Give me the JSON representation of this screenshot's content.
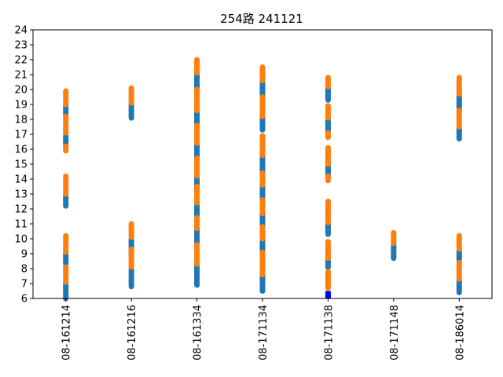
{
  "chart_data": {
    "type": "scatter",
    "title": "254路  241121",
    "xlabel": "",
    "ylabel": "",
    "ylim": [
      6,
      24
    ],
    "yticks": [
      6,
      7,
      8,
      9,
      10,
      11,
      12,
      13,
      14,
      15,
      16,
      17,
      18,
      19,
      20,
      21,
      22,
      23,
      24
    ],
    "categories": [
      "08-161214",
      "08-161216",
      "08-161334",
      "08-171134",
      "08-171138",
      "08-171148",
      "08-186014"
    ],
    "grid": false,
    "legend": "none",
    "series": [
      {
        "color": "#1f77b4",
        "segments": [
          [
            0,
            6.0,
            7.0
          ],
          [
            0,
            8.3,
            9.0
          ],
          [
            0,
            12.2,
            12.9
          ],
          [
            0,
            16.3,
            16.9
          ],
          [
            0,
            18.3,
            18.9
          ],
          [
            1,
            6.8,
            8.0
          ],
          [
            1,
            8.9,
            10.0
          ],
          [
            1,
            18.1,
            19.1
          ],
          [
            2,
            6.9,
            8.2
          ],
          [
            2,
            9.7,
            10.6
          ],
          [
            2,
            11.5,
            12.3
          ],
          [
            2,
            13.2,
            14.1
          ],
          [
            2,
            15.4,
            16.3
          ],
          [
            2,
            17.7,
            18.5
          ],
          [
            2,
            20.0,
            21.0
          ],
          [
            3,
            6.5,
            7.5
          ],
          [
            3,
            9.2,
            9.9
          ],
          [
            3,
            10.9,
            11.6
          ],
          [
            3,
            12.7,
            13.5
          ],
          [
            3,
            14.5,
            15.5
          ],
          [
            3,
            17.3,
            18.1
          ],
          [
            3,
            19.6,
            20.5
          ],
          [
            4,
            8.1,
            8.6
          ],
          [
            4,
            10.3,
            11.0
          ],
          [
            4,
            14.3,
            14.9
          ],
          [
            4,
            17.2,
            18.0
          ],
          [
            4,
            19.3,
            20.1
          ],
          [
            5,
            8.7,
            9.6
          ],
          [
            6,
            6.4,
            7.2
          ],
          [
            6,
            8.6,
            9.2
          ],
          [
            6,
            16.7,
            17.4
          ],
          [
            6,
            18.7,
            19.6
          ]
        ]
      },
      {
        "color": "#ff7f0e",
        "segments": [
          [
            0,
            7.1,
            8.1
          ],
          [
            0,
            9.1,
            10.2
          ],
          [
            0,
            13.0,
            14.2
          ],
          [
            0,
            15.9,
            16.2
          ],
          [
            0,
            17.1,
            18.2
          ],
          [
            0,
            19.0,
            19.9
          ],
          [
            1,
            8.1,
            9.3
          ],
          [
            1,
            10.1,
            11.0
          ],
          [
            1,
            19.1,
            20.1
          ],
          [
            2,
            8.3,
            9.6
          ],
          [
            2,
            10.7,
            11.4
          ],
          [
            2,
            12.4,
            13.5
          ],
          [
            2,
            14.2,
            15.4
          ],
          [
            2,
            16.4,
            17.6
          ],
          [
            2,
            18.6,
            20.0
          ],
          [
            2,
            21.1,
            22.0
          ],
          [
            3,
            7.6,
            9.1
          ],
          [
            3,
            10.0,
            10.8
          ],
          [
            3,
            11.7,
            12.6
          ],
          [
            3,
            13.6,
            14.4
          ],
          [
            3,
            15.6,
            16.9
          ],
          [
            3,
            18.2,
            19.5
          ],
          [
            3,
            20.6,
            21.5
          ],
          [
            4,
            6.7,
            7.8
          ],
          [
            4,
            8.7,
            9.8
          ],
          [
            4,
            11.1,
            12.5
          ],
          [
            4,
            13.9,
            14.2
          ],
          [
            4,
            15.0,
            16.1
          ],
          [
            4,
            16.8,
            17.1
          ],
          [
            4,
            18.1,
            18.9
          ],
          [
            4,
            20.2,
            20.8
          ],
          [
            5,
            9.7,
            10.4
          ],
          [
            6,
            7.3,
            8.4
          ],
          [
            6,
            9.3,
            10.2
          ],
          [
            6,
            17.5,
            18.6
          ],
          [
            6,
            19.7,
            20.8
          ]
        ]
      },
      {
        "color": "#0000ff",
        "segments": [
          [
            4,
            6.0,
            6.5
          ]
        ]
      }
    ]
  }
}
